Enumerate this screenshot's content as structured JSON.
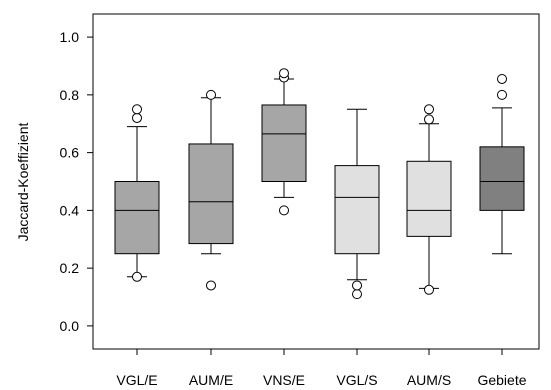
{
  "chart_data": {
    "type": "boxplot",
    "title": "",
    "xlabel": "",
    "ylabel": "Jaccard-Koeffizient",
    "ylim": [
      -0.08,
      1.08
    ],
    "yticks": [
      0.0,
      0.2,
      0.4,
      0.6,
      0.8,
      1.0
    ],
    "ytick_labels": [
      "0.0",
      "0.2",
      "0.4",
      "0.6",
      "0.8",
      "1.0"
    ],
    "grid": false,
    "legend": "none",
    "categories": [
      "VGL/E",
      "AUM/E",
      "VNS/E",
      "VGL/S",
      "AUM/S",
      "Gebiete"
    ],
    "boxes": [
      {
        "category": "VGL/E",
        "whisker_low": 0.17,
        "q1": 0.25,
        "median": 0.4,
        "q3": 0.5,
        "whisker_high": 0.69,
        "outliers": [
          0.17,
          0.72,
          0.75
        ],
        "color": "#a6a6a6"
      },
      {
        "category": "AUM/E",
        "whisker_low": 0.25,
        "q1": 0.285,
        "median": 0.43,
        "q3": 0.63,
        "whisker_high": 0.79,
        "outliers": [
          0.14,
          0.8
        ],
        "color": "#a6a6a6"
      },
      {
        "category": "VNS/E",
        "whisker_low": 0.445,
        "q1": 0.5,
        "median": 0.665,
        "q3": 0.765,
        "whisker_high": 0.855,
        "outliers": [
          0.4,
          0.86,
          0.875
        ],
        "color": "#a6a6a6"
      },
      {
        "category": "VGL/S",
        "whisker_low": 0.16,
        "q1": 0.25,
        "median": 0.445,
        "q3": 0.555,
        "whisker_high": 0.75,
        "outliers": [
          0.11,
          0.14
        ],
        "color": "#e0e0e0"
      },
      {
        "category": "AUM/S",
        "whisker_low": 0.13,
        "q1": 0.31,
        "median": 0.4,
        "q3": 0.57,
        "whisker_high": 0.7,
        "outliers": [
          0.125,
          0.715,
          0.75
        ],
        "color": "#e0e0e0"
      },
      {
        "category": "Gebiete",
        "whisker_low": 0.25,
        "q1": 0.4,
        "median": 0.5,
        "q3": 0.62,
        "whisker_high": 0.755,
        "outliers": [
          0.8,
          0.855
        ],
        "color": "#808080"
      }
    ]
  }
}
